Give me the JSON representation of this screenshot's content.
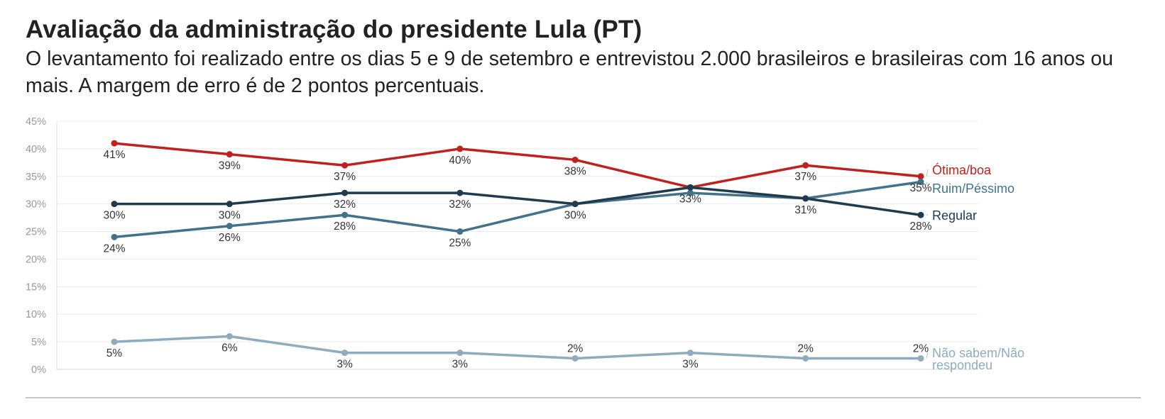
{
  "title": "Avaliação da administração do presidente Lula (PT)",
  "subtitle": "O levantamento foi realizado entre os dias 5 e 9 de setembro e entrevistou 2.000 brasileiros e brasileiras com 16 anos ou mais. A margem de erro é de 2 pontos percentuais.",
  "chart_data": {
    "type": "line",
    "title": "Avaliação da administração do presidente Lula (PT)",
    "subtitle": "O levantamento foi realizado entre os dias 5 e 9 de setembro e entrevistou 2.000 brasileiros e brasileiras com 16 anos ou mais. A margem de erro é de 2 pontos percentuais.",
    "xlabel": "",
    "ylabel": "",
    "ylim": [
      0,
      45
    ],
    "yticks": [
      "0%",
      "5%",
      "10%",
      "15%",
      "20%",
      "25%",
      "30%",
      "35%",
      "40%",
      "45%"
    ],
    "ytick_values": [
      0,
      5,
      10,
      15,
      20,
      25,
      30,
      35,
      40,
      45
    ],
    "grid": true,
    "legend": "right (labels at line ends)",
    "series": [
      {
        "name": "Ótima/boa",
        "color": "#c0211f",
        "values": [
          41,
          39,
          37,
          40,
          38,
          33,
          37,
          35
        ],
        "labels": [
          "41%",
          "39%",
          "37%",
          "40%",
          "38%",
          "",
          "37%",
          "35%"
        ],
        "label_pos": [
          "below",
          "below",
          "below",
          "below",
          "below",
          "below",
          "below",
          "below"
        ]
      },
      {
        "name": "Ruim/Péssimo",
        "color": "#42718c",
        "values": [
          24,
          26,
          28,
          25,
          30,
          32,
          31,
          34
        ],
        "labels": [
          "24%",
          "26%",
          "28%",
          "25%",
          "",
          "",
          "31%",
          ""
        ],
        "label_pos": [
          "below",
          "below",
          "below",
          "below",
          "below",
          "below",
          "below",
          "below"
        ]
      },
      {
        "name": "Regular",
        "color": "#1f3b4d",
        "values": [
          30,
          30,
          32,
          32,
          30,
          33,
          31,
          28
        ],
        "labels": [
          "30%",
          "30%",
          "32%",
          "32%",
          "30%",
          "33%",
          "",
          "28%"
        ],
        "label_pos": [
          "below",
          "below",
          "below",
          "below",
          "below",
          "below",
          "below",
          "below"
        ]
      },
      {
        "name": "Não sabem/Não respondeu",
        "color": "#8eacbd",
        "values": [
          5,
          6,
          3,
          3,
          2,
          3,
          2,
          2
        ],
        "labels": [
          "5%",
          "6%",
          "3%",
          "3%",
          "2%",
          "3%",
          "2%",
          "2%"
        ],
        "label_pos": [
          "below",
          "below",
          "below",
          "below",
          "above",
          "below",
          "above",
          "above"
        ]
      }
    ],
    "end_labels": [
      {
        "lines": [
          "Ótima/boa"
        ],
        "color": "#c0211f"
      },
      {
        "lines": [
          "Ruim/Péssimo"
        ],
        "color": "#42718c"
      },
      {
        "lines": [
          "Regular"
        ],
        "color": "#1f3b4d"
      },
      {
        "lines": [
          "Não sabem/Não",
          "respondeu"
        ],
        "color": "#8eacbd"
      }
    ]
  }
}
